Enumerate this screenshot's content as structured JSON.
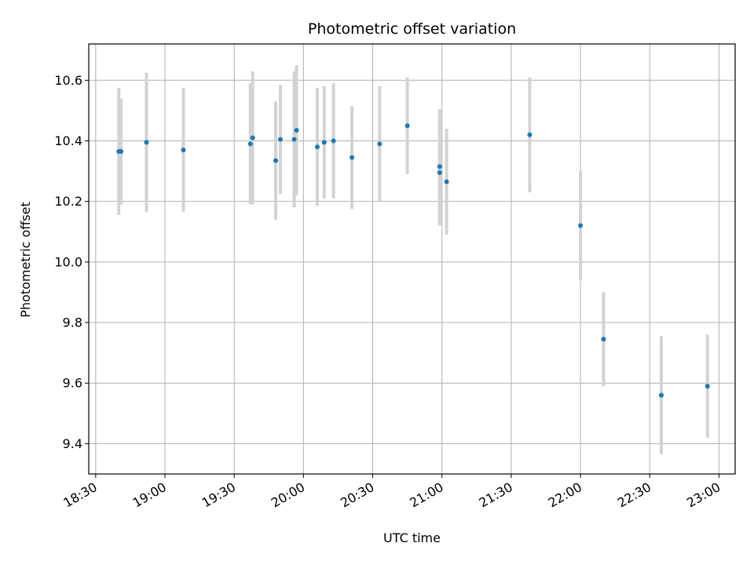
{
  "chart_data": {
    "type": "scatter",
    "title": "Photometric offset variation",
    "xlabel": "UTC time",
    "ylabel": "Photometric offset",
    "x_ticks": [
      "18:30",
      "19:00",
      "19:30",
      "20:00",
      "20:30",
      "21:00",
      "21:30",
      "22:00",
      "22:30",
      "23:00"
    ],
    "y_ticks": [
      "9.4",
      "9.6",
      "9.8",
      "10.0",
      "10.2",
      "10.4",
      "10.6"
    ],
    "xlim": [
      "18:27",
      "23:07"
    ],
    "ylim": [
      9.3,
      10.72
    ],
    "grid": true,
    "marker_color": "#1f77b4",
    "errorbar_color": "#d3d3d3",
    "points": [
      {
        "x": "18:40",
        "y": 10.365,
        "err": 0.21
      },
      {
        "x": "18:41",
        "y": 10.365,
        "err": 0.175
      },
      {
        "x": "18:52",
        "y": 10.395,
        "err": 0.23
      },
      {
        "x": "19:08",
        "y": 10.37,
        "err": 0.205
      },
      {
        "x": "19:37",
        "y": 10.39,
        "err": 0.2
      },
      {
        "x": "19:38",
        "y": 10.41,
        "err": 0.22
      },
      {
        "x": "19:48",
        "y": 10.335,
        "err": 0.195
      },
      {
        "x": "19:50",
        "y": 10.405,
        "err": 0.18
      },
      {
        "x": "19:56",
        "y": 10.405,
        "err": 0.225
      },
      {
        "x": "19:57",
        "y": 10.435,
        "err": 0.215
      },
      {
        "x": "20:06",
        "y": 10.38,
        "err": 0.195
      },
      {
        "x": "20:09",
        "y": 10.395,
        "err": 0.185
      },
      {
        "x": "20:13",
        "y": 10.4,
        "err": 0.19
      },
      {
        "x": "20:21",
        "y": 10.345,
        "err": 0.17
      },
      {
        "x": "20:33",
        "y": 10.39,
        "err": 0.19
      },
      {
        "x": "20:45",
        "y": 10.45,
        "err": 0.16
      },
      {
        "x": "20:59",
        "y": 10.315,
        "err": 0.19
      },
      {
        "x": "20:59",
        "y": 10.295,
        "err": 0.175
      },
      {
        "x": "21:02",
        "y": 10.265,
        "err": 0.175
      },
      {
        "x": "21:38",
        "y": 10.42,
        "err": 0.19
      },
      {
        "x": "22:00",
        "y": 10.12,
        "err": 0.18
      },
      {
        "x": "22:10",
        "y": 9.745,
        "err": 0.155
      },
      {
        "x": "22:35",
        "y": 9.56,
        "err": 0.195
      },
      {
        "x": "22:55",
        "y": 9.59,
        "err": 0.17
      }
    ]
  }
}
